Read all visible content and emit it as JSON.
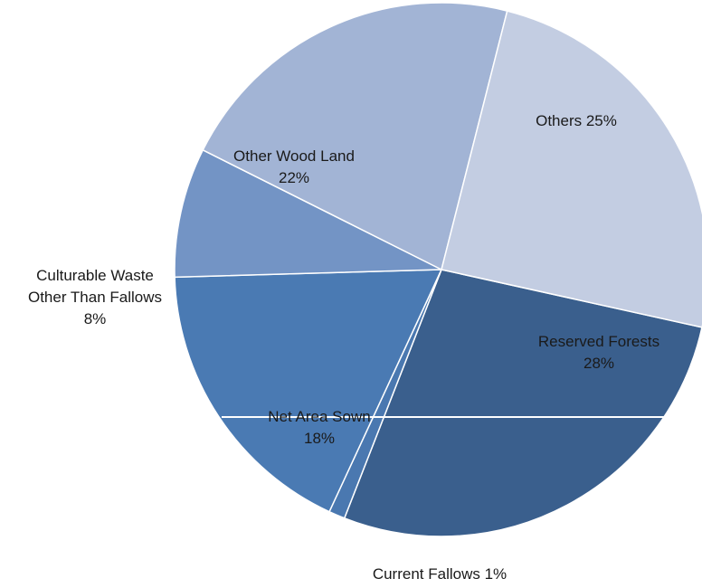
{
  "chart_data": {
    "type": "pie",
    "title": "",
    "legend": "none",
    "slices": [
      {
        "label": "Reserved Forests",
        "value": 28,
        "display": [
          "Reserved Forests",
          "28%"
        ],
        "color": "#3a5f8d",
        "text_color": "#ffffff"
      },
      {
        "label": "Current Fallows",
        "value": 1,
        "display": [
          "Current Fallows 1%"
        ],
        "color": "#4a78b0",
        "text_color": "#1a1a1a"
      },
      {
        "label": "Net Area Sown",
        "value": 18,
        "display": [
          "Net Area Sown",
          "18%"
        ],
        "color": "#4a7ab3",
        "text_color": "#1a1a1a"
      },
      {
        "label": "Culturable Waste Other Than Fallows",
        "value": 8,
        "display": [
          "Culturable Waste",
          "Other Than Fallows",
          "8%"
        ],
        "color": "#7394c5",
        "text_color": "#1a1a1a"
      },
      {
        "label": "Other Wood Land",
        "value": 22,
        "display": [
          "Other Wood Land",
          "22%"
        ],
        "color": "#a2b4d5",
        "text_color": "#1a1a1a"
      },
      {
        "label": "Others",
        "value": 25,
        "display": [
          "Others 25%"
        ],
        "color": "#c3cde2",
        "text_color": "#1a1a1a"
      }
    ]
  }
}
